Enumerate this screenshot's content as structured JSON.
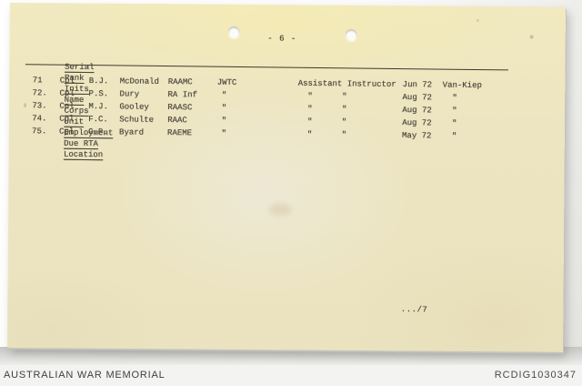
{
  "scan": {
    "page_number": "- 6 -",
    "continuation_mark": ".../7"
  },
  "table": {
    "headers": [
      "Serial",
      "Rank",
      "Inits",
      "Name",
      "Corps",
      "Unit",
      "Employment",
      "Due RTA",
      "Location"
    ],
    "rows": [
      {
        "serial": "71",
        "rank": "Cpl",
        "inits": "B.J.",
        "name": "McDonald",
        "corps": "RAAMC",
        "unit": "JWTC",
        "employment": "Assistant Instructor",
        "due_rta": "Jun 72",
        "location": "Van-Kiep"
      },
      {
        "serial": "72.",
        "rank": "Cpl",
        "inits": "P.S.",
        "name": "Dury",
        "corps": "RA Inf",
        "unit": " \"",
        "employment": "  \"      \"",
        "due_rta": "Aug 72",
        "location": "  \""
      },
      {
        "serial": "73.",
        "rank": "Cpl",
        "inits": "M.J.",
        "name": "Gooley",
        "corps": "RAASC",
        "unit": " \"",
        "employment": "  \"      \"",
        "due_rta": "Aug 72",
        "location": "  \""
      },
      {
        "serial": "74.",
        "rank": "Cpl",
        "inits": "F.C.",
        "name": "Schulte",
        "corps": "RAAC",
        "unit": " \"",
        "employment": "  \"      \"",
        "due_rta": "Aug 72",
        "location": "  \""
      },
      {
        "serial": "75.",
        "rank": "Cpl",
        "inits": "G.P.",
        "name": "Byard",
        "corps": "RAEME",
        "unit": " \"",
        "employment": "  \"      \"",
        "due_rta": "May 72",
        "location": "  \""
      }
    ]
  },
  "footer": {
    "left_text": "AUSTRALIAN WAR MEMORIAL",
    "right_text": "RCDIG1030347"
  },
  "colors": {
    "paper": "#ede5c1",
    "ink": "#4a443b",
    "footer_background": "#f3f3f1",
    "footer_text": "#3f3f3d"
  }
}
